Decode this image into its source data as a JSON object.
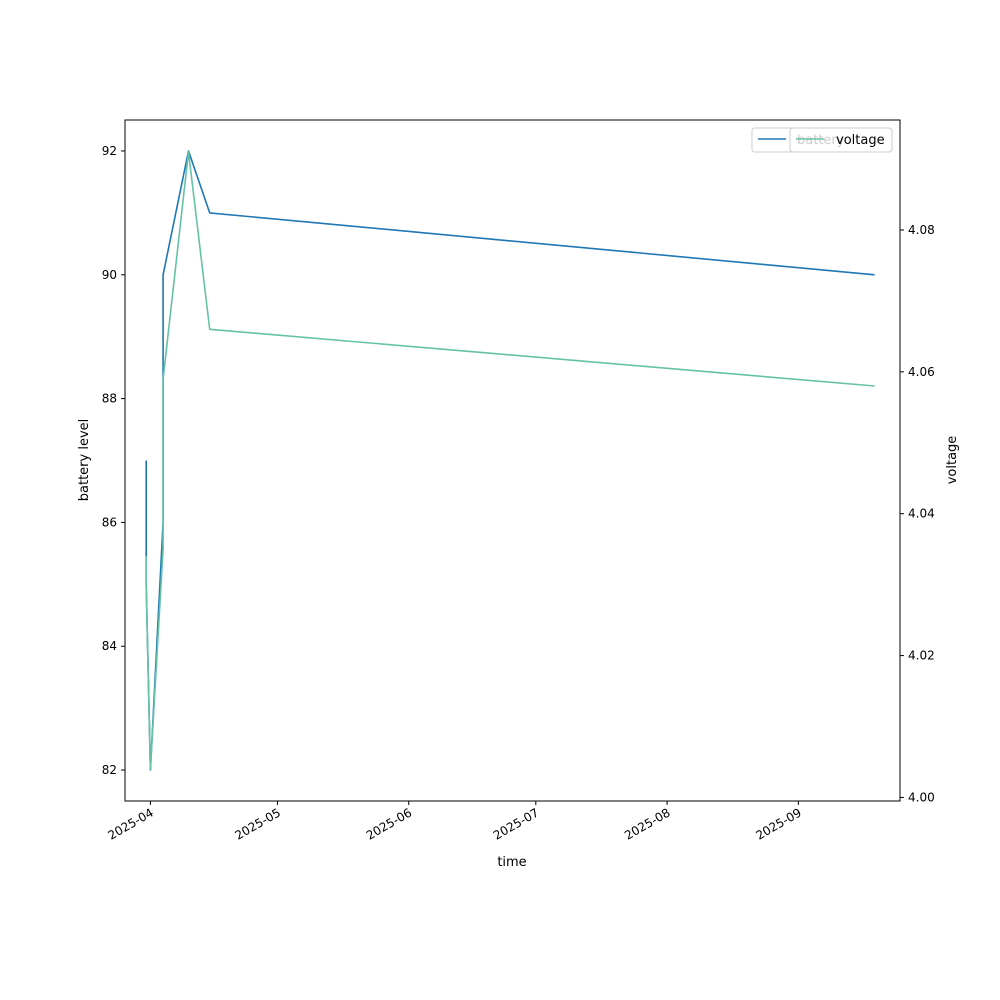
{
  "chart_data": {
    "type": "line",
    "title": "",
    "xlabel": "time",
    "ylabel": "battery level",
    "y2label": "voltage",
    "x_ticks": [
      "2025-04",
      "2025-05",
      "2025-06",
      "2025-07",
      "2025-08",
      "2025-09"
    ],
    "y_ticks": [
      82,
      84,
      86,
      88,
      90,
      92
    ],
    "y2_ticks": [
      4.0,
      4.02,
      4.04,
      4.06,
      4.08
    ],
    "xlim": [
      "2025-03-26",
      "2025-09-25"
    ],
    "ylim": [
      81.5,
      92.5
    ],
    "y2lim": [
      3.9995,
      4.0955
    ],
    "grid": false,
    "legend_placement": "top-right",
    "series": [
      {
        "name": "battery",
        "axis": "left",
        "color": "#1f77b4",
        "points": [
          {
            "x": "2025-03-31",
            "y": 87
          },
          {
            "x": "2025-03-31",
            "y": 85
          },
          {
            "x": "2025-04-01",
            "y": 82
          },
          {
            "x": "2025-04-04",
            "y": 86
          },
          {
            "x": "2025-04-04",
            "y": 87
          },
          {
            "x": "2025-04-04",
            "y": 90
          },
          {
            "x": "2025-04-10",
            "y": 92
          },
          {
            "x": "2025-04-15",
            "y": 91
          },
          {
            "x": "2025-09-19",
            "y": 90
          }
        ]
      },
      {
        "name": "voltage",
        "axis": "right",
        "color": "#66c2a5",
        "points": [
          {
            "x": "2025-03-31",
            "y": 4.034
          },
          {
            "x": "2025-03-31",
            "y": 4.03
          },
          {
            "x": "2025-04-01",
            "y": 4.004
          },
          {
            "x": "2025-04-04",
            "y": 4.035
          },
          {
            "x": "2025-04-04",
            "y": 4.048
          },
          {
            "x": "2025-04-04",
            "y": 4.059
          },
          {
            "x": "2025-04-10",
            "y": 4.091
          },
          {
            "x": "2025-04-15",
            "y": 4.066
          },
          {
            "x": "2025-09-19",
            "y": 4.058
          }
        ]
      }
    ]
  }
}
